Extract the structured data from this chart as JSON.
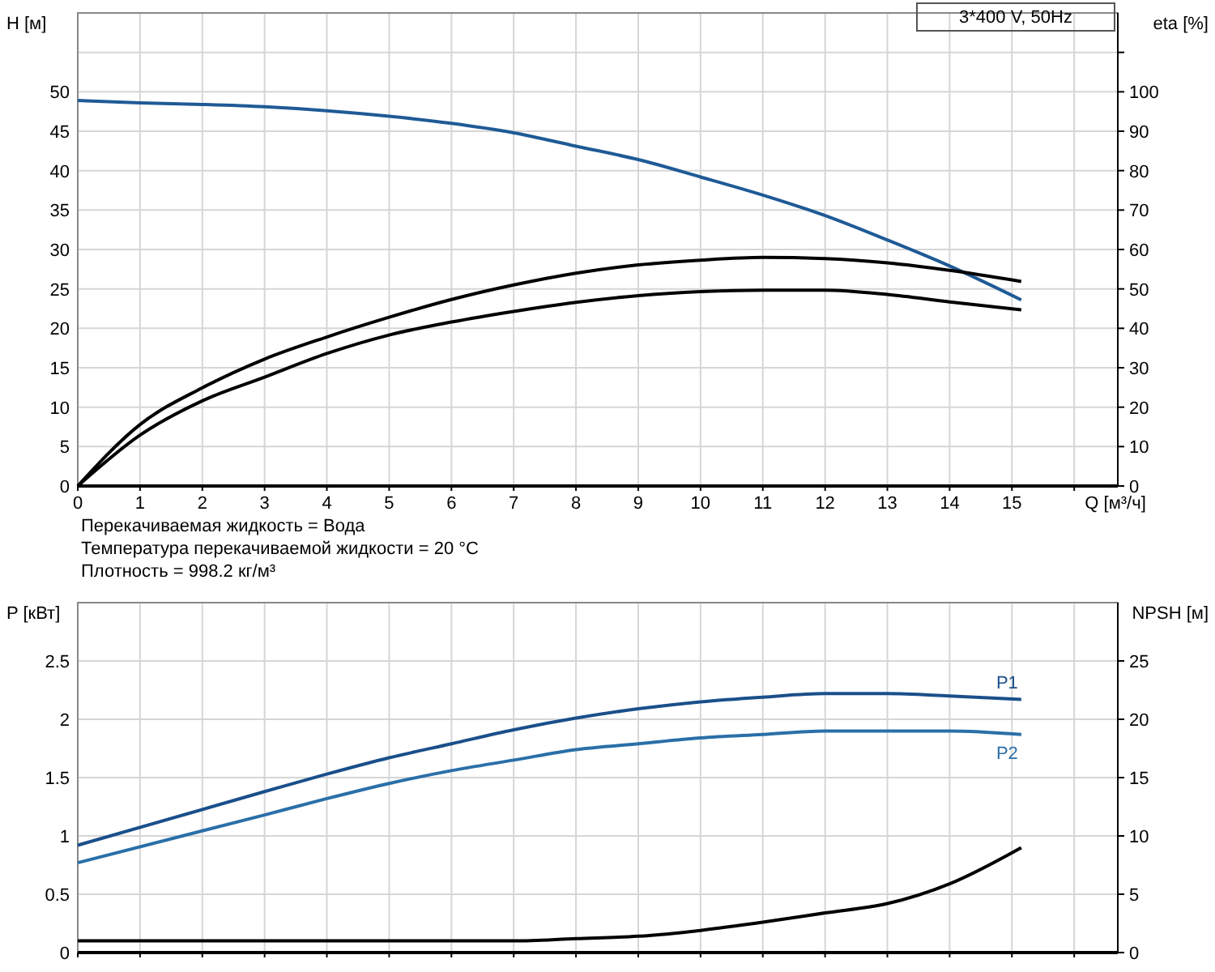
{
  "chart_data": [
    {
      "type": "line",
      "xlabel": "Q [м³/ч]",
      "ylabel": "H [м]",
      "y2label": "eta [%]",
      "xlim": [
        0,
        16.7
      ],
      "xticks": [
        0,
        1,
        2,
        3,
        4,
        5,
        6,
        7,
        8,
        9,
        10,
        11,
        12,
        13,
        14,
        15,
        {
          "value": 16,
          "label": null
        }
      ],
      "ylim": [
        0,
        60
      ],
      "yticks": [
        0,
        5,
        10,
        15,
        20,
        25,
        30,
        35,
        40,
        45,
        50,
        {
          "value": 55,
          "label": null
        }
      ],
      "y2lim": [
        0,
        120
      ],
      "y2ticks": [
        0,
        10,
        20,
        30,
        40,
        50,
        60,
        70,
        80,
        90,
        100,
        {
          "value": 110,
          "label": null
        }
      ],
      "grid": true,
      "annotations": [
        "3*400 V, 50Hz",
        "Перекачиваемая жидкость = Вода",
        "Температура перекачиваемой жидкости = 20 °C",
        "Плотность = 998.2 кг/м³"
      ],
      "series": [
        {
          "color": "#1f5a96",
          "x": [
            0,
            1,
            2,
            3,
            4,
            5,
            6,
            7,
            8,
            9,
            10,
            11,
            12,
            13,
            14,
            15.15
          ],
          "values": [
            48.9,
            48.6,
            48.4,
            48.1,
            47.6,
            46.9,
            46.0,
            44.8,
            43.1,
            41.4,
            39.2,
            36.9,
            34.3,
            31.2,
            27.9,
            23.6
          ]
        },
        {
          "color": "#000000",
          "axis": "y2",
          "x": [
            0,
            1,
            2,
            3,
            4,
            5,
            6,
            7,
            8,
            9,
            10,
            11,
            12,
            13,
            14,
            15.15
          ],
          "values": [
            0,
            15.6,
            24.9,
            32.2,
            37.8,
            42.8,
            47.3,
            51.0,
            54.0,
            56.1,
            57.3,
            58.0,
            57.7,
            56.6,
            54.7,
            51.9
          ]
        },
        {
          "color": "#000000",
          "axis": "y2",
          "x": [
            0,
            1,
            2,
            3,
            4,
            5,
            6,
            7,
            8,
            9,
            10,
            11,
            12,
            13,
            14,
            15.15
          ],
          "values": [
            0,
            12.9,
            21.6,
            27.6,
            33.6,
            38.3,
            41.6,
            44.3,
            46.6,
            48.3,
            49.3,
            49.7,
            49.7,
            48.6,
            46.7,
            44.7
          ]
        }
      ]
    },
    {
      "type": "line",
      "ylabel": "P [кВт]",
      "y2label": "NPSH [м]",
      "xlim": [
        0,
        16.7
      ],
      "xticks": [
        0,
        1,
        2,
        3,
        4,
        5,
        6,
        7,
        8,
        9,
        10,
        11,
        12,
        13,
        14,
        15,
        16
      ],
      "ylim": [
        0,
        3
      ],
      "yticks": [
        0,
        0.5,
        1,
        1.5,
        2,
        2.5
      ],
      "y2lim": [
        0,
        30
      ],
      "y2ticks": [
        0,
        5,
        10,
        15,
        20,
        25
      ],
      "grid": true,
      "tick_labels": "y",
      "series": [
        {
          "name": "P1",
          "color": "#1a4f8a",
          "x": [
            0,
            3,
            4,
            5,
            6,
            7,
            8,
            9,
            10,
            11,
            12,
            13,
            14,
            15.15
          ],
          "values": [
            0.92,
            1.38,
            1.53,
            1.67,
            1.79,
            1.91,
            2.01,
            2.09,
            2.15,
            2.19,
            2.22,
            2.22,
            2.2,
            2.17
          ]
        },
        {
          "name": "P2",
          "color": "#2a6fa8",
          "x": [
            0,
            3,
            4,
            5,
            6,
            7,
            8,
            9,
            10,
            11,
            12,
            13,
            14,
            15.15
          ],
          "values": [
            0.77,
            1.18,
            1.32,
            1.45,
            1.56,
            1.65,
            1.74,
            1.79,
            1.84,
            1.87,
            1.9,
            1.9,
            1.9,
            1.87
          ]
        },
        {
          "color": "#000000",
          "axis": "y2",
          "x": [
            0,
            3,
            6,
            7,
            8,
            9,
            10,
            11,
            12,
            13,
            14,
            15.15
          ],
          "values": [
            1.0,
            1.0,
            1.0,
            1.0,
            1.2,
            1.4,
            1.9,
            2.6,
            3.4,
            4.2,
            5.9,
            9.0
          ]
        }
      ]
    }
  ]
}
